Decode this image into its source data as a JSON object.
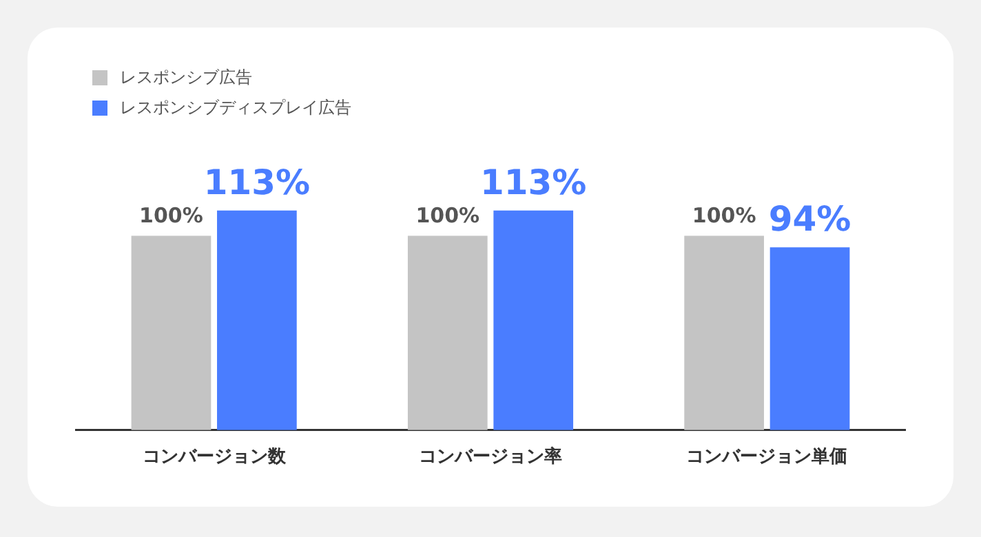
{
  "chart_data": {
    "type": "bar",
    "categories": [
      "コンバージョン数",
      "コンバージョン率",
      "コンバージョン単価"
    ],
    "series": [
      {
        "name": "レスポンシブ広告",
        "color": "#c4c4c4",
        "values": [
          100,
          100,
          100
        ],
        "value_labels": [
          "100%",
          "100%",
          "100%"
        ]
      },
      {
        "name": "レスポンシブディスプレイ広告",
        "color": "#4a7dff",
        "values": [
          113,
          113,
          94
        ],
        "value_labels": [
          "113%",
          "113%",
          "94%"
        ]
      }
    ],
    "legend": "top left",
    "grid": false
  }
}
